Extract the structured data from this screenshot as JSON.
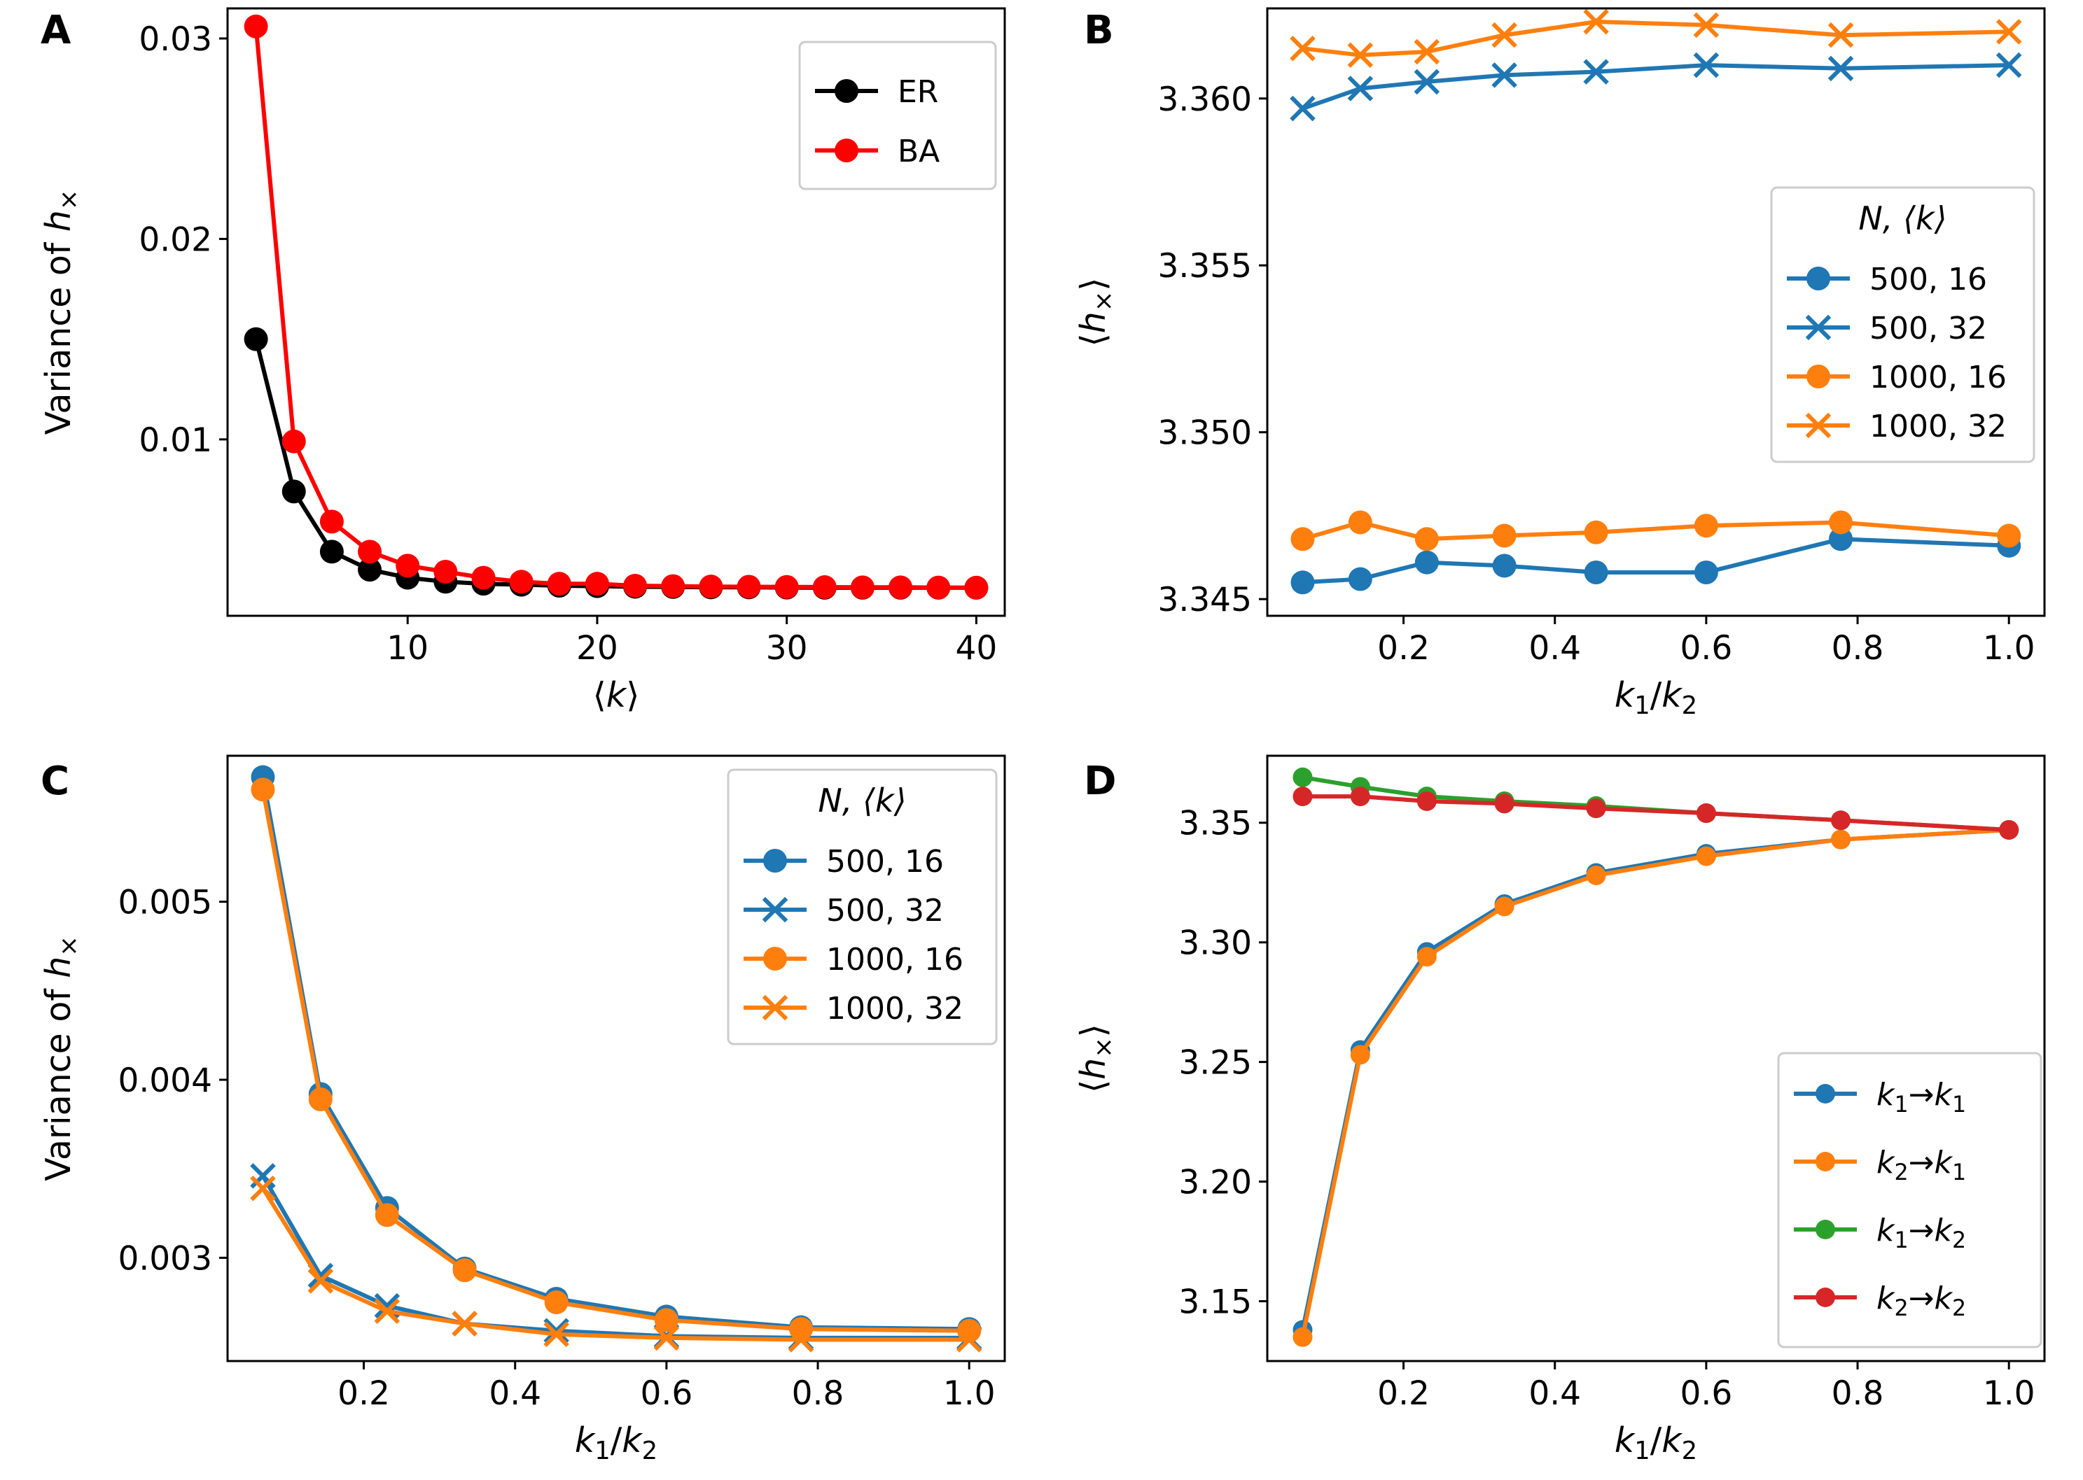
{
  "chart_data": [
    {
      "panel": "A",
      "type": "line",
      "xlabel": "⟨k⟩",
      "ylabel": "Variance of h×",
      "xlim": [
        0.5,
        41.5
      ],
      "ylim": [
        0.0012,
        0.0315
      ],
      "xticks": [
        10,
        20,
        30,
        40
      ],
      "xtick_labels": [
        "10",
        "20",
        "30",
        "40"
      ],
      "yticks": [
        0.01,
        0.02,
        0.03
      ],
      "ytick_labels": [
        "0.01",
        "0.02",
        "0.03"
      ],
      "legend_location": "top-right",
      "series": [
        {
          "name": "ER",
          "color": "#000000",
          "marker": "o",
          "x": [
            2,
            4,
            6,
            8,
            10,
            12,
            14,
            16,
            18,
            20,
            22,
            24,
            26,
            28,
            30,
            32,
            34,
            36,
            38,
            40
          ],
          "y": [
            0.015,
            0.0074,
            0.0044,
            0.0035,
            0.0031,
            0.0029,
            0.0028,
            0.00275,
            0.0027,
            0.00268,
            0.00265,
            0.00264,
            0.00262,
            0.00262,
            0.00261,
            0.0026,
            0.0026,
            0.0026,
            0.0026,
            0.0026
          ]
        },
        {
          "name": "BA",
          "color": "#ff0000",
          "marker": "o",
          "x": [
            2,
            4,
            6,
            8,
            10,
            12,
            14,
            16,
            18,
            20,
            22,
            24,
            26,
            28,
            30,
            32,
            34,
            36,
            38,
            40
          ],
          "y": [
            0.0306,
            0.0099,
            0.0059,
            0.0044,
            0.0037,
            0.0034,
            0.0031,
            0.0029,
            0.0028,
            0.0028,
            0.0027,
            0.00268,
            0.00266,
            0.00265,
            0.00264,
            0.00263,
            0.00262,
            0.00262,
            0.00261,
            0.0026
          ]
        }
      ]
    },
    {
      "panel": "B",
      "type": "line",
      "xlabel": "k1/k2",
      "ylabel": "⟨h×⟩",
      "xlim": [
        0.02,
        1.047
      ],
      "ylim": [
        3.3445,
        3.3627
      ],
      "xticks": [
        0.2,
        0.4,
        0.6,
        0.8,
        1.0
      ],
      "xtick_labels": [
        "0.2",
        "0.4",
        "0.6",
        "0.8",
        "1.0"
      ],
      "yticks": [
        3.345,
        3.35,
        3.355,
        3.36
      ],
      "ytick_labels": [
        "3.345",
        "3.350",
        "3.355",
        "3.360"
      ],
      "legend_title": "N, ⟨k⟩",
      "legend_location": "center-right",
      "series": [
        {
          "name": "500, 16",
          "color": "#1f77b4",
          "marker": "o",
          "x": [
            0.0667,
            0.1429,
            0.2308,
            0.3333,
            0.4545,
            0.6,
            0.7778,
            1.0
          ],
          "y": [
            3.3455,
            3.3456,
            3.3461,
            3.346,
            3.3458,
            3.3458,
            3.3468,
            3.3466
          ]
        },
        {
          "name": "500, 32",
          "color": "#1f77b4",
          "marker": "x",
          "x": [
            0.0667,
            0.1429,
            0.2308,
            0.3333,
            0.4545,
            0.6,
            0.7778,
            1.0
          ],
          "y": [
            3.3597,
            3.3603,
            3.3605,
            3.3607,
            3.3608,
            3.361,
            3.3609,
            3.361
          ]
        },
        {
          "name": "1000, 16",
          "color": "#ff7f0e",
          "marker": "o",
          "x": [
            0.0667,
            0.1429,
            0.2308,
            0.3333,
            0.4545,
            0.6,
            0.7778,
            1.0
          ],
          "y": [
            3.3468,
            3.3473,
            3.3468,
            3.3469,
            3.347,
            3.3472,
            3.3473,
            3.3469
          ]
        },
        {
          "name": "1000, 32",
          "color": "#ff7f0e",
          "marker": "x",
          "x": [
            0.0667,
            0.1429,
            0.2308,
            0.3333,
            0.4545,
            0.6,
            0.7778,
            1.0
          ],
          "y": [
            3.3615,
            3.3613,
            3.3614,
            3.3619,
            3.3623,
            3.3622,
            3.3619,
            3.362
          ]
        }
      ]
    },
    {
      "panel": "C",
      "type": "line",
      "xlabel": "k1/k2",
      "ylabel": "Variance of h×",
      "xlim": [
        0.02,
        1.047
      ],
      "ylim": [
        0.00242,
        0.00582
      ],
      "xticks": [
        0.2,
        0.4,
        0.6,
        0.8,
        1.0
      ],
      "xtick_labels": [
        "0.2",
        "0.4",
        "0.6",
        "0.8",
        "1.0"
      ],
      "yticks": [
        0.003,
        0.004,
        0.005
      ],
      "ytick_labels": [
        "0.003",
        "0.004",
        "0.005"
      ],
      "legend_title": "N, ⟨k⟩",
      "legend_location": "top-right",
      "series": [
        {
          "name": "500, 16",
          "color": "#1f77b4",
          "marker": "o",
          "x": [
            0.0667,
            0.1429,
            0.2308,
            0.3333,
            0.4545,
            0.6,
            0.7778,
            1.0
          ],
          "y": [
            0.0057,
            0.00392,
            0.00328,
            0.00294,
            0.00277,
            0.00267,
            0.00261,
            0.0026
          ]
        },
        {
          "name": "500, 32",
          "color": "#1f77b4",
          "marker": "x",
          "x": [
            0.0667,
            0.1429,
            0.2308,
            0.3333,
            0.4545,
            0.6,
            0.7778,
            1.0
          ],
          "y": [
            0.00346,
            0.0029,
            0.00273,
            0.00263,
            0.00259,
            0.00256,
            0.00255,
            0.00255
          ]
        },
        {
          "name": "1000, 16",
          "color": "#ff7f0e",
          "marker": "o",
          "x": [
            0.0667,
            0.1429,
            0.2308,
            0.3333,
            0.4545,
            0.6,
            0.7778,
            1.0
          ],
          "y": [
            0.00563,
            0.00389,
            0.00324,
            0.00293,
            0.00275,
            0.00265,
            0.0026,
            0.00259
          ]
        },
        {
          "name": "1000, 32",
          "color": "#ff7f0e",
          "marker": "x",
          "x": [
            0.0667,
            0.1429,
            0.2308,
            0.3333,
            0.4545,
            0.6,
            0.7778,
            1.0
          ],
          "y": [
            0.00339,
            0.00287,
            0.0027,
            0.00263,
            0.00257,
            0.00255,
            0.00254,
            0.00254
          ]
        }
      ]
    },
    {
      "panel": "D",
      "type": "line",
      "xlabel": "k1/k2",
      "ylabel": "⟨h×⟩",
      "xlim": [
        0.02,
        1.047
      ],
      "ylim": [
        3.125,
        3.378
      ],
      "xticks": [
        0.2,
        0.4,
        0.6,
        0.8,
        1.0
      ],
      "xtick_labels": [
        "0.2",
        "0.4",
        "0.6",
        "0.8",
        "1.0"
      ],
      "yticks": [
        3.15,
        3.2,
        3.25,
        3.3,
        3.35
      ],
      "ytick_labels": [
        "3.15",
        "3.20",
        "3.25",
        "3.30",
        "3.35"
      ],
      "legend_location": "bottom-right",
      "series": [
        {
          "name": "k1→k1",
          "label_parts": [
            "k",
            "1",
            "→",
            "k",
            "1"
          ],
          "color": "#1f77b4",
          "marker": "o",
          "x": [
            0.0667,
            0.1429,
            0.2308,
            0.3333,
            0.4545,
            0.6,
            0.7778,
            1.0
          ],
          "y": [
            3.138,
            3.255,
            3.296,
            3.316,
            3.329,
            3.337,
            3.343,
            3.347
          ]
        },
        {
          "name": "k2→k1",
          "label_parts": [
            "k",
            "2",
            "→",
            "k",
            "1"
          ],
          "color": "#ff7f0e",
          "marker": "o",
          "x": [
            0.0667,
            0.1429,
            0.2308,
            0.3333,
            0.4545,
            0.6,
            0.7778,
            1.0
          ],
          "y": [
            3.135,
            3.253,
            3.294,
            3.315,
            3.328,
            3.336,
            3.343,
            3.347
          ]
        },
        {
          "name": "k1→k2",
          "label_parts": [
            "k",
            "1",
            "→",
            "k",
            "2"
          ],
          "color": "#2ca02c",
          "marker": "o",
          "x": [
            0.0667,
            0.1429,
            0.2308,
            0.3333,
            0.4545,
            0.6,
            0.7778,
            1.0
          ],
          "y": [
            3.369,
            3.365,
            3.361,
            3.359,
            3.357,
            3.354,
            3.351,
            3.347
          ]
        },
        {
          "name": "k2→k2",
          "label_parts": [
            "k",
            "2",
            "→",
            "k",
            "2"
          ],
          "color": "#d62728",
          "marker": "o",
          "x": [
            0.0667,
            0.1429,
            0.2308,
            0.3333,
            0.4545,
            0.6,
            0.7778,
            1.0
          ],
          "y": [
            3.361,
            3.361,
            3.359,
            3.358,
            3.356,
            3.354,
            3.351,
            3.347
          ]
        }
      ]
    }
  ]
}
